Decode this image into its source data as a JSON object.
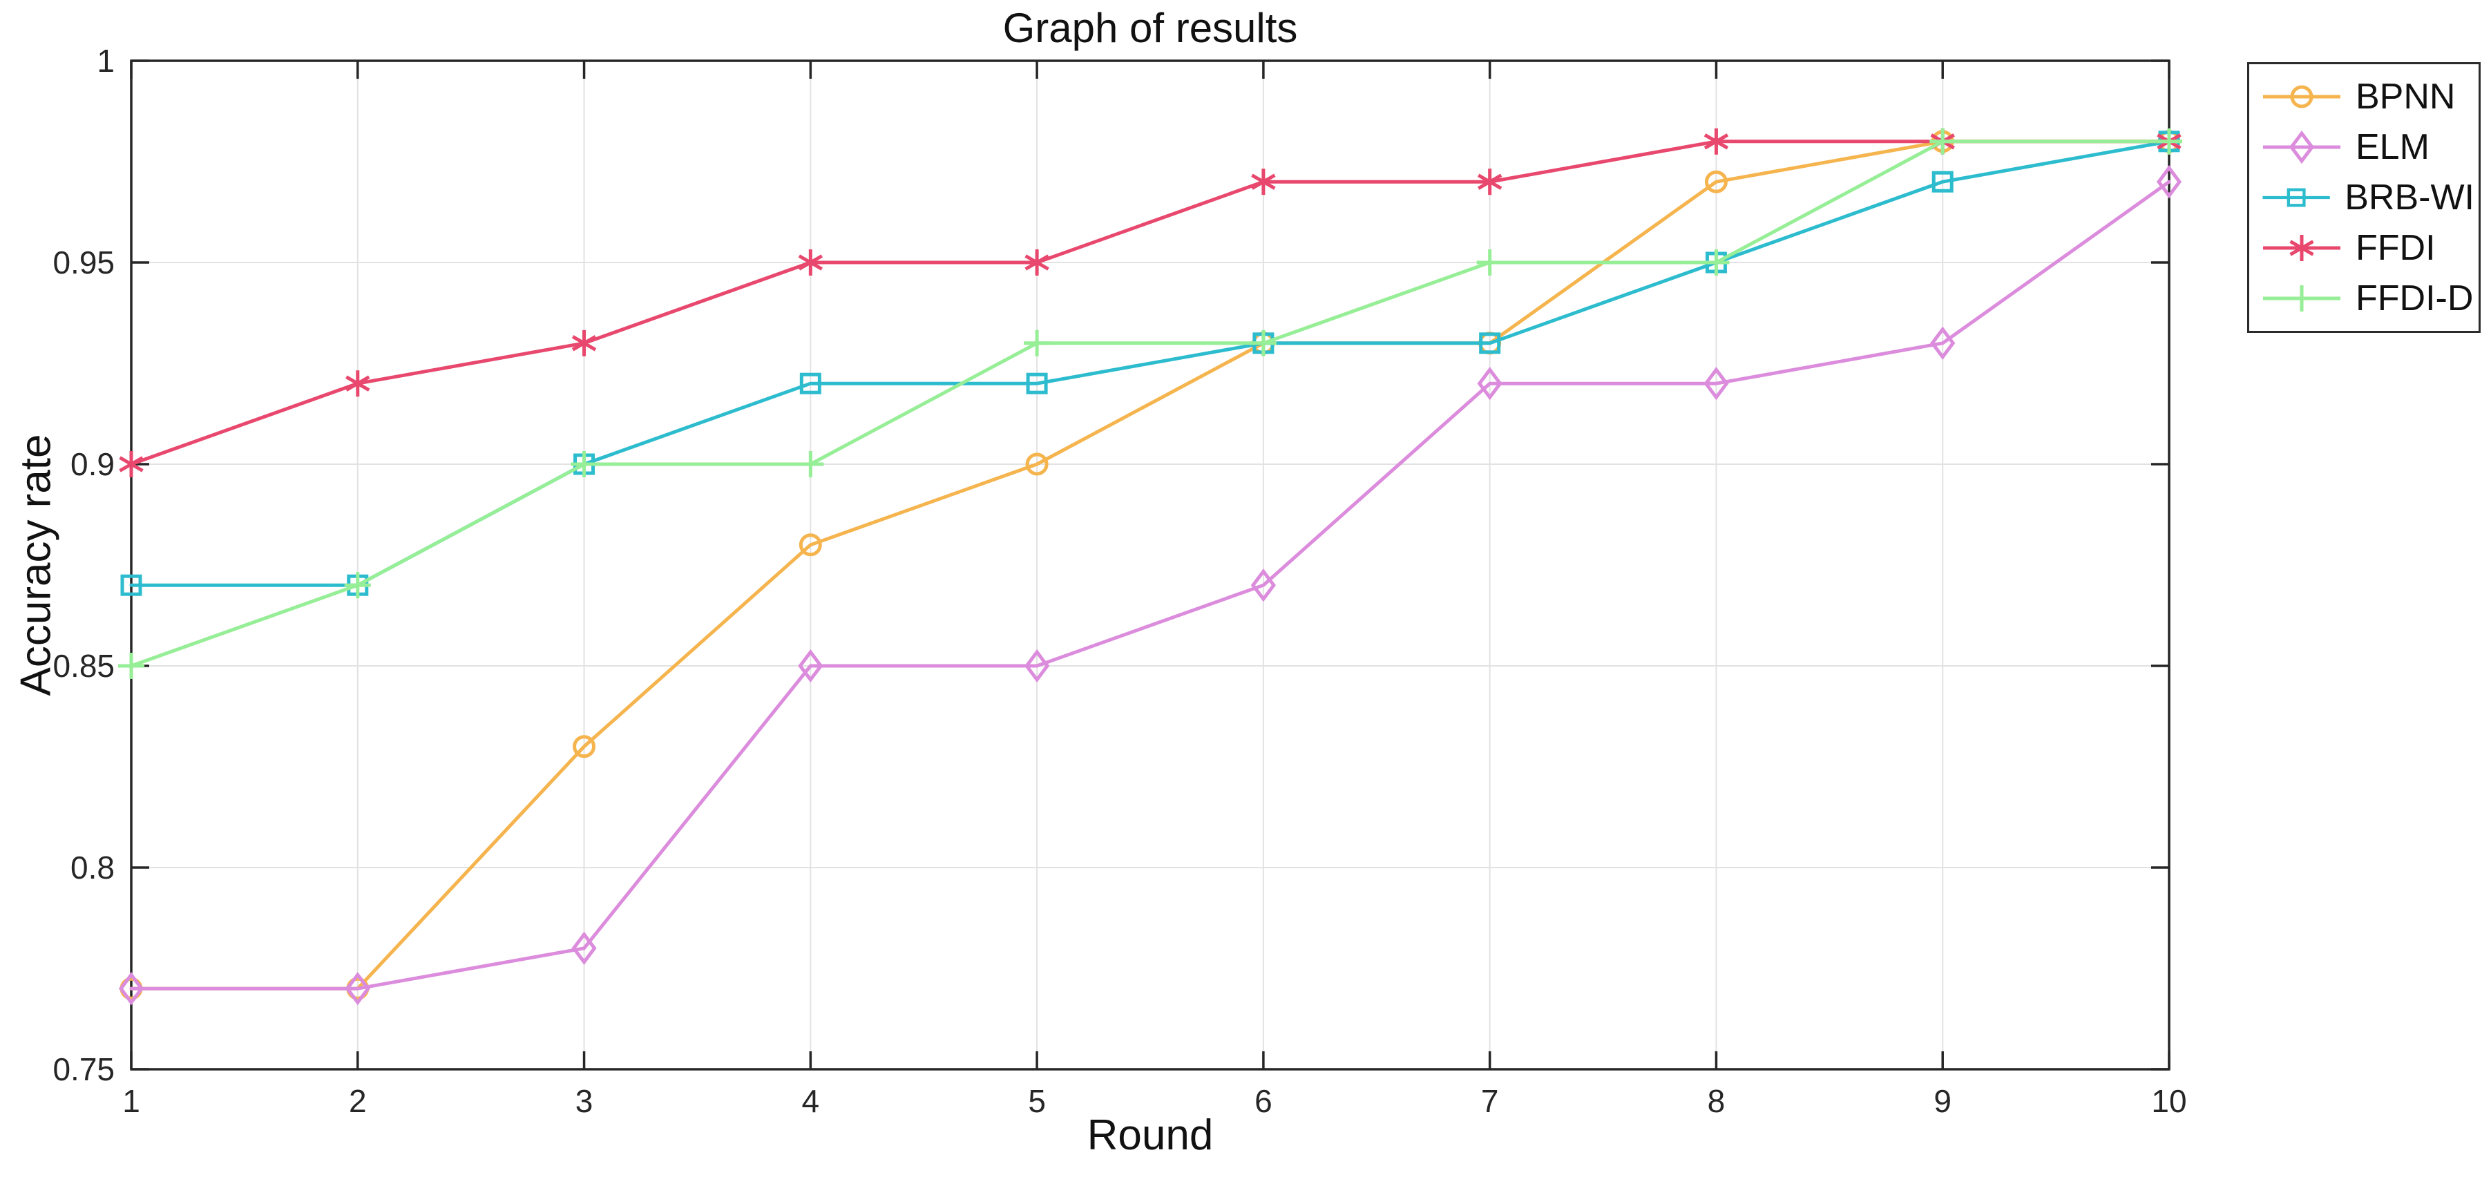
{
  "figure": {
    "background": "#ffffff",
    "axis_color": "#262626",
    "grid_color": "#e2e2e2",
    "text_color": "#111111"
  },
  "chart_data": {
    "type": "line",
    "title": "Graph of results",
    "xlabel": "Round",
    "ylabel": "Accuracy rate",
    "x": [
      1,
      2,
      3,
      4,
      5,
      6,
      7,
      8,
      9,
      10
    ],
    "xlim": [
      1,
      10
    ],
    "ylim": [
      0.75,
      1.0
    ],
    "xticks": [
      {
        "v": 1,
        "label": "1"
      },
      {
        "v": 2,
        "label": "2"
      },
      {
        "v": 3,
        "label": "3"
      },
      {
        "v": 4,
        "label": "4"
      },
      {
        "v": 5,
        "label": "5"
      },
      {
        "v": 6,
        "label": "6"
      },
      {
        "v": 7,
        "label": "7"
      },
      {
        "v": 8,
        "label": "8"
      },
      {
        "v": 9,
        "label": "9"
      },
      {
        "v": 10,
        "label": "10"
      }
    ],
    "yticks": [
      {
        "v": 0.75,
        "label": "0.75"
      },
      {
        "v": 0.8,
        "label": "0.8"
      },
      {
        "v": 0.85,
        "label": "0.85"
      },
      {
        "v": 0.9,
        "label": "0.9"
      },
      {
        "v": 0.95,
        "label": "0.95"
      },
      {
        "v": 1.0,
        "label": "1"
      }
    ],
    "grid": true,
    "legend_position": "outside-top-right",
    "series": [
      {
        "name": "BPNN",
        "color": "#f5b44d",
        "marker": "circle",
        "values": [
          0.77,
          0.77,
          0.83,
          0.88,
          0.9,
          0.93,
          0.93,
          0.97,
          0.98,
          0.98
        ]
      },
      {
        "name": "ELM",
        "color": "#dc8cdc",
        "marker": "diamond",
        "values": [
          0.77,
          0.77,
          0.78,
          0.85,
          0.85,
          0.87,
          0.92,
          0.92,
          0.93,
          0.97
        ]
      },
      {
        "name": "BRB-WI",
        "color": "#2cbcce",
        "marker": "square",
        "values": [
          0.87,
          0.87,
          0.9,
          0.92,
          0.92,
          0.93,
          0.93,
          0.95,
          0.97,
          0.98
        ]
      },
      {
        "name": "FFDI",
        "color": "#e8486e",
        "marker": "asterisk",
        "values": [
          0.9,
          0.92,
          0.93,
          0.95,
          0.95,
          0.97,
          0.97,
          0.98,
          0.98,
          0.98
        ]
      },
      {
        "name": "FFDI-D",
        "color": "#96ee96",
        "marker": "plus",
        "values": [
          0.85,
          0.87,
          0.9,
          0.9,
          0.93,
          0.93,
          0.95,
          0.95,
          0.98,
          0.98
        ]
      }
    ]
  }
}
